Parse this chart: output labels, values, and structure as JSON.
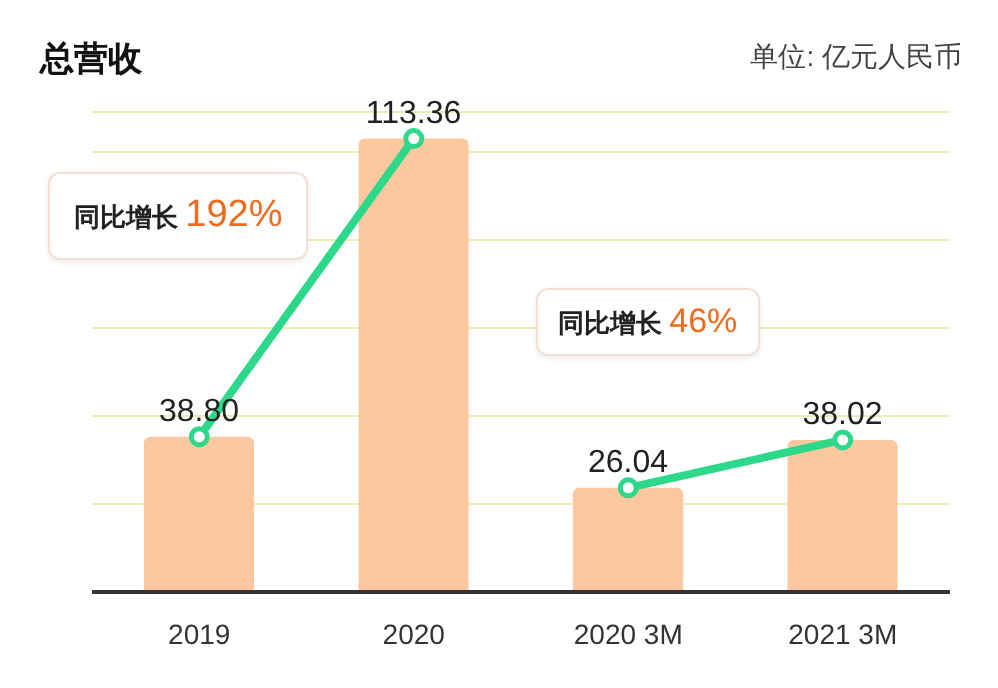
{
  "chart_data": {
    "type": "bar",
    "title": "总营收",
    "subtitle": "单位: 亿元人民币",
    "categories": [
      "2019",
      "2020",
      "2020 3M",
      "2021 3M"
    ],
    "series": [
      {
        "color": "#fdc8a0",
        "values": [
          38.8,
          113.36,
          26.04,
          38.02
        ],
        "value_labels": [
          "38.80",
          "113.36",
          "26.04",
          "38.02"
        ]
      },
      {
        "type": "line",
        "color": "#2ed88a",
        "values": [
          38.8,
          113.36,
          null,
          null
        ]
      },
      {
        "type": "line",
        "color": "#2ed88a",
        "values": [
          null,
          null,
          26.04,
          38.02
        ]
      }
    ],
    "ylim": [
      0,
      120
    ],
    "yticks": [
      {
        "value": 0,
        "label": null
      },
      {
        "value": 22,
        "label": null
      },
      {
        "value": 44,
        "label": null
      },
      {
        "value": 66,
        "label": null
      },
      {
        "value": 88,
        "label": null
      },
      {
        "value": 110,
        "label": null
      }
    ],
    "tick_labels": "x",
    "grid": "y",
    "legend": false,
    "marker": "circle",
    "annotations": [
      "同比增长 192%",
      "同比增长 46%"
    ]
  }
}
